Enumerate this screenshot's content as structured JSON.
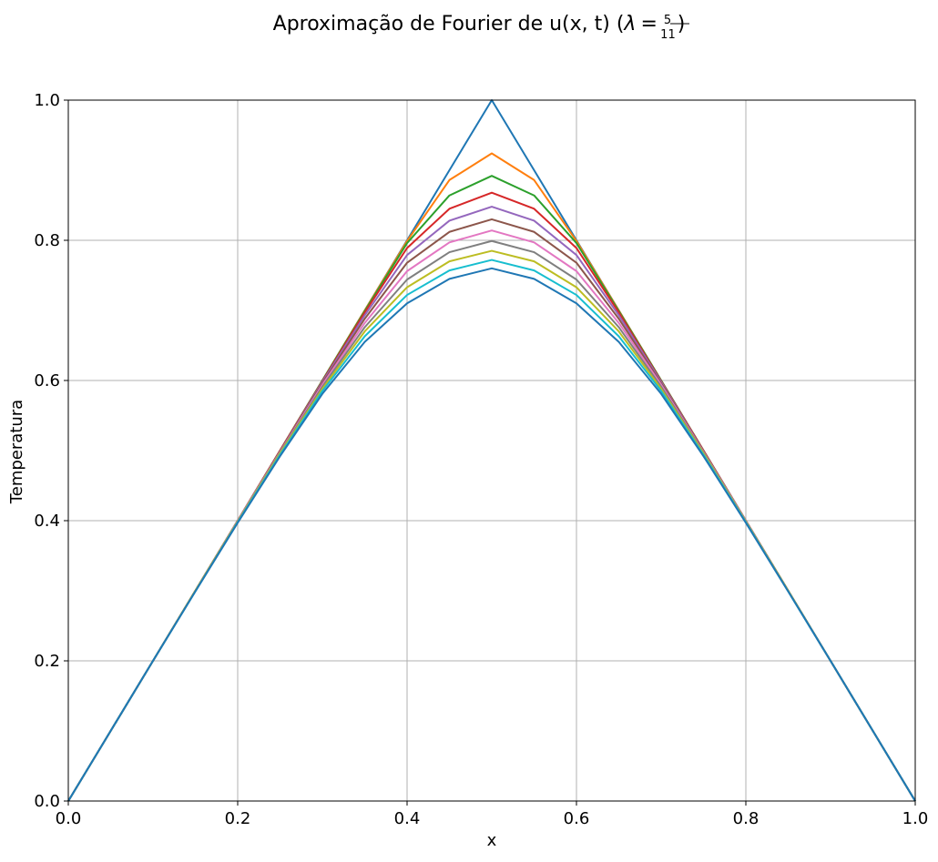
{
  "chart_data": {
    "type": "line",
    "title": {
      "text": "Aproximação de Fourier de u(x, t) (",
      "lambda": "λ",
      "equals": "=",
      "numerator": "5",
      "denominator": "11",
      "close": ")"
    },
    "xlabel": "x",
    "ylabel": "Temperatura",
    "xlim": [
      0.0,
      1.0
    ],
    "ylim": [
      0.0,
      1.0
    ],
    "grid": true,
    "xticks": [
      0.0,
      0.2,
      0.4,
      0.6,
      0.8,
      1.0
    ],
    "yticks": [
      0.0,
      0.2,
      0.4,
      0.6,
      0.8,
      1.0
    ],
    "xtick_labels": [
      "0.0",
      "0.2",
      "0.4",
      "0.6",
      "0.8",
      "1.0"
    ],
    "ytick_labels": [
      "0.0",
      "0.2",
      "0.4",
      "0.6",
      "0.8",
      "1.0"
    ],
    "x": [
      0.0,
      0.05,
      0.1,
      0.15,
      0.2,
      0.25,
      0.3,
      0.35,
      0.4,
      0.45,
      0.5,
      0.55,
      0.6,
      0.65,
      0.7,
      0.75,
      0.8,
      0.85,
      0.9,
      0.95,
      1.0
    ],
    "series": [
      {
        "color": "#1f77b4",
        "values": [
          0.0,
          0.1,
          0.2,
          0.3,
          0.4,
          0.5,
          0.6,
          0.7,
          0.8,
          0.9,
          1.0,
          0.9,
          0.8,
          0.7,
          0.6,
          0.5,
          0.4,
          0.3,
          0.2,
          0.1,
          0.0
        ]
      },
      {
        "color": "#ff7f0e",
        "values": [
          0.0,
          0.1,
          0.2,
          0.3,
          0.4,
          0.5,
          0.6,
          0.7,
          0.799,
          0.886,
          0.924,
          0.886,
          0.799,
          0.7,
          0.6,
          0.5,
          0.4,
          0.3,
          0.2,
          0.1,
          0.0
        ]
      },
      {
        "color": "#2ca02c",
        "values": [
          0.0,
          0.1,
          0.2,
          0.3,
          0.4,
          0.5,
          0.6,
          0.699,
          0.796,
          0.864,
          0.892,
          0.864,
          0.796,
          0.699,
          0.6,
          0.5,
          0.4,
          0.3,
          0.2,
          0.1,
          0.0
        ]
      },
      {
        "color": "#d62728",
        "values": [
          0.0,
          0.1,
          0.2,
          0.3,
          0.4,
          0.5,
          0.599,
          0.697,
          0.789,
          0.845,
          0.868,
          0.845,
          0.789,
          0.697,
          0.599,
          0.5,
          0.4,
          0.3,
          0.2,
          0.1,
          0.0
        ]
      },
      {
        "color": "#9467bd",
        "values": [
          0.0,
          0.1,
          0.2,
          0.3,
          0.4,
          0.499,
          0.598,
          0.693,
          0.779,
          0.828,
          0.848,
          0.828,
          0.779,
          0.693,
          0.598,
          0.499,
          0.4,
          0.3,
          0.2,
          0.1,
          0.0
        ]
      },
      {
        "color": "#8c564b",
        "values": [
          0.0,
          0.1,
          0.2,
          0.3,
          0.4,
          0.499,
          0.596,
          0.688,
          0.768,
          0.812,
          0.83,
          0.812,
          0.768,
          0.688,
          0.596,
          0.499,
          0.4,
          0.3,
          0.2,
          0.1,
          0.0
        ]
      },
      {
        "color": "#e377c2",
        "values": [
          0.0,
          0.1,
          0.2,
          0.3,
          0.4,
          0.498,
          0.594,
          0.682,
          0.756,
          0.797,
          0.814,
          0.797,
          0.756,
          0.682,
          0.594,
          0.498,
          0.4,
          0.3,
          0.2,
          0.1,
          0.0
        ]
      },
      {
        "color": "#7f7f7f",
        "values": [
          0.0,
          0.1,
          0.2,
          0.3,
          0.399,
          0.497,
          0.591,
          0.676,
          0.744,
          0.783,
          0.799,
          0.783,
          0.744,
          0.676,
          0.591,
          0.497,
          0.399,
          0.3,
          0.2,
          0.1,
          0.0
        ]
      },
      {
        "color": "#bcbd22",
        "values": [
          0.0,
          0.1,
          0.2,
          0.3,
          0.399,
          0.496,
          0.588,
          0.67,
          0.733,
          0.77,
          0.785,
          0.77,
          0.733,
          0.67,
          0.588,
          0.496,
          0.399,
          0.3,
          0.2,
          0.1,
          0.0
        ]
      },
      {
        "color": "#17becf",
        "values": [
          0.0,
          0.1,
          0.2,
          0.299,
          0.398,
          0.494,
          0.585,
          0.663,
          0.722,
          0.757,
          0.772,
          0.757,
          0.722,
          0.663,
          0.585,
          0.494,
          0.398,
          0.299,
          0.2,
          0.1,
          0.0
        ]
      },
      {
        "color": "#1f77b4",
        "values": [
          0.0,
          0.1,
          0.2,
          0.299,
          0.397,
          0.492,
          0.581,
          0.655,
          0.71,
          0.745,
          0.76,
          0.745,
          0.71,
          0.655,
          0.581,
          0.492,
          0.397,
          0.299,
          0.2,
          0.1,
          0.0
        ]
      }
    ]
  }
}
